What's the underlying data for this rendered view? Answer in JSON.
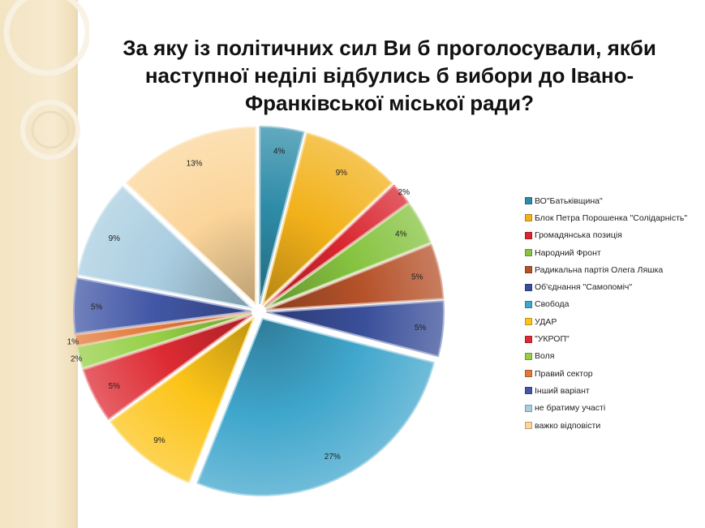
{
  "slide": {
    "title": "За яку із політичних сил Ви б проголосували, якби\nнаступної неділі відбулись б вибори до Івано-\nФранківської міської ради?"
  },
  "chart_data": {
    "type": "pie",
    "title": "За яку із політичних сил Ви б проголосували, якби наступної неділі відбулись б вибори до Івано-Франківської міської ради?",
    "legend_position": "right",
    "exploded": true,
    "slices": [
      {
        "name": "ВО\"Батьківщина\"",
        "value": 4,
        "label": "4%",
        "color": "#2e8ca8"
      },
      {
        "name": "Блок Петра Порошенка \"Солідарність\"",
        "value": 9,
        "label": "9%",
        "color": "#f2b11a"
      },
      {
        "name": "Громадянська позиція",
        "value": 2,
        "label": "2%",
        "color": "#d9262f"
      },
      {
        "name": "Народний Фронт",
        "value": 4,
        "label": "4%",
        "color": "#86c340"
      },
      {
        "name": "Радикальна партія Олега Ляшка",
        "value": 5,
        "label": "5%",
        "color": "#b5522a"
      },
      {
        "name": "Об'єднання \"Самопоміч\"",
        "value": 5,
        "label": "5%",
        "color": "#3a4f9a"
      },
      {
        "name": "Свобода",
        "value": 27,
        "label": "27%",
        "color": "#3fa6cc"
      },
      {
        "name": "УДАР",
        "value": 9,
        "label": "9%",
        "color": "#fcc419"
      },
      {
        "name": "\"УКРОП\"",
        "value": 5,
        "label": "5%",
        "color": "#de2b33"
      },
      {
        "name": "Воля",
        "value": 2,
        "label": "2%",
        "color": "#96cf47"
      },
      {
        "name": "Правий сектор",
        "value": 1,
        "label": "1%",
        "color": "#e1793a"
      },
      {
        "name": "Інший варіант",
        "value": 5,
        "label": "5%",
        "color": "#4257a6"
      },
      {
        "name": "не братиму участі",
        "value": 9,
        "label": "9%",
        "color": "#a9cde0"
      },
      {
        "name": "важко відповісти",
        "value": 13,
        "label": "13%",
        "color": "#fbd59a"
      }
    ]
  }
}
